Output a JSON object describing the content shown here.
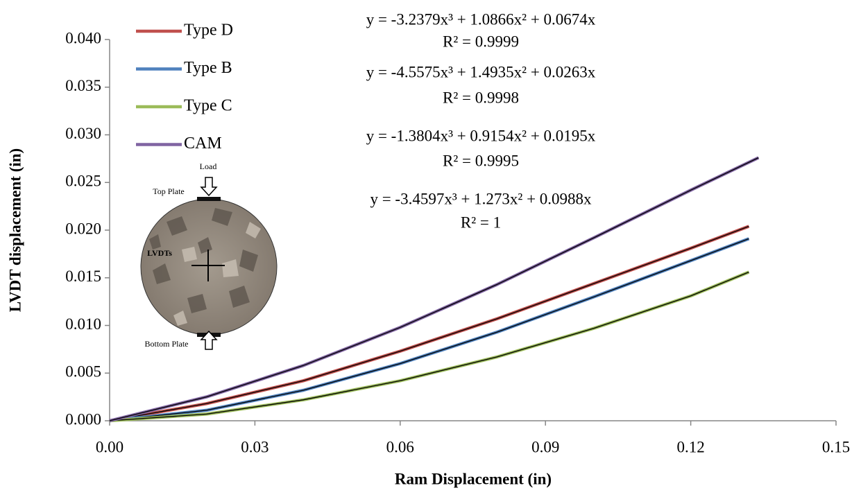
{
  "chart_data": {
    "type": "line",
    "xlabel": "Ram Displacement (in)",
    "ylabel": "LVDT displacement (in)",
    "xlim": [
      0,
      0.15
    ],
    "ylim": [
      0,
      0.04
    ],
    "xticks": [
      {
        "value": 0,
        "label": "0.00"
      },
      {
        "value": 0.03,
        "label": "0.03"
      },
      {
        "value": 0.06,
        "label": "0.06"
      },
      {
        "value": 0.09,
        "label": "0.09"
      },
      {
        "value": 0.12,
        "label": "0.12"
      },
      {
        "value": 0.15,
        "label": "0.15"
      }
    ],
    "yticks": [
      {
        "value": 0,
        "label": "0.000"
      },
      {
        "value": 0.005,
        "label": "0.005"
      },
      {
        "value": 0.01,
        "label": "0.010"
      },
      {
        "value": 0.015,
        "label": "0.015"
      },
      {
        "value": 0.02,
        "label": "0.020"
      },
      {
        "value": 0.025,
        "label": "0.025"
      },
      {
        "value": 0.03,
        "label": "0.030"
      },
      {
        "value": 0.035,
        "label": "0.035"
      },
      {
        "value": 0.04,
        "label": "0.040"
      }
    ],
    "trendline_color": "#000000",
    "series": [
      {
        "name": "Type D",
        "color": "#c0504d",
        "x": [
          0,
          0.02,
          0.04,
          0.06,
          0.08,
          0.1,
          0.12,
          0.132
        ],
        "values": [
          0,
          0.0018,
          0.0042,
          0.0073,
          0.0107,
          0.0144,
          0.0181,
          0.0204
        ]
      },
      {
        "name": "Type B",
        "color": "#4f81bd",
        "x": [
          0,
          0.02,
          0.04,
          0.06,
          0.08,
          0.1,
          0.12,
          0.132
        ],
        "values": [
          0,
          0.0011,
          0.0032,
          0.006,
          0.0093,
          0.013,
          0.0168,
          0.0191
        ]
      },
      {
        "name": "Type C",
        "color": "#9bbb59",
        "x": [
          0,
          0.02,
          0.04,
          0.06,
          0.08,
          0.1,
          0.12,
          0.132
        ],
        "values": [
          0,
          0.0007,
          0.0022,
          0.0042,
          0.0067,
          0.0097,
          0.0131,
          0.0156
        ]
      },
      {
        "name": "CAM",
        "color": "#8064a2",
        "x": [
          0,
          0.02,
          0.04,
          0.06,
          0.08,
          0.1,
          0.12,
          0.134
        ],
        "values": [
          0,
          0.0025,
          0.0058,
          0.0098,
          0.0143,
          0.0192,
          0.0242,
          0.0276
        ]
      }
    ],
    "annotations": [
      "y = -3.2379x³ + 1.0866x² + 0.0674x",
      "R² = 0.9999",
      "y = -4.5575x³ + 1.4935x² + 0.0263x",
      "R² = 0.9998",
      "y = -1.3804x³ + 0.9154x² + 0.0195x",
      "R² = 0.9995",
      "y = -3.4597x³ + 1.273x² + 0.0988x",
      "R² = 1"
    ],
    "inset_labels": [
      "Load",
      "Top Plate",
      "LVDTs",
      "Bottom Plate"
    ]
  }
}
